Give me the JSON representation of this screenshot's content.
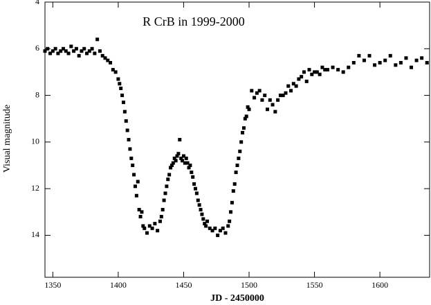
{
  "chart_data": {
    "type": "scatter",
    "title": "R CrB in 1999-2000",
    "x_label": "JD - 2450000",
    "y_label": "Visual   magnitude",
    "color": "#000000",
    "xlim": [
      1344,
      1638
    ],
    "xticks": [
      1350,
      1400,
      1450,
      1500,
      1550,
      1600
    ],
    "ylim": [
      15.8,
      4
    ],
    "yticks": [
      4,
      6,
      8,
      10,
      12,
      14
    ],
    "x": [
      1344,
      1346,
      1348,
      1350,
      1352,
      1354,
      1356,
      1358,
      1360,
      1362,
      1364,
      1366,
      1368,
      1370,
      1372,
      1374,
      1376,
      1378,
      1380,
      1382,
      1384,
      1386,
      1388,
      1390,
      1392,
      1394,
      1396,
      1398,
      1400,
      1401,
      1402,
      1403,
      1404,
      1405,
      1406,
      1407,
      1408,
      1409,
      1410,
      1411,
      1412,
      1413,
      1414,
      1415,
      1416,
      1417,
      1418,
      1419,
      1420,
      1422,
      1424,
      1426,
      1428,
      1430,
      1432,
      1433,
      1434,
      1435,
      1436,
      1437,
      1438,
      1439,
      1440,
      1441,
      1442,
      1443,
      1444,
      1445,
      1446,
      1447,
      1448,
      1449,
      1450,
      1451,
      1452,
      1453,
      1454,
      1455,
      1456,
      1457,
      1458,
      1459,
      1460,
      1461,
      1462,
      1463,
      1464,
      1465,
      1466,
      1467,
      1468,
      1470,
      1472,
      1474,
      1476,
      1478,
      1480,
      1482,
      1484,
      1485,
      1486,
      1487,
      1488,
      1489,
      1490,
      1491,
      1492,
      1493,
      1494,
      1495,
      1496,
      1497,
      1498,
      1499,
      1500,
      1502,
      1504,
      1506,
      1508,
      1510,
      1512,
      1514,
      1516,
      1518,
      1520,
      1522,
      1524,
      1526,
      1528,
      1530,
      1532,
      1534,
      1536,
      1538,
      1540,
      1542,
      1544,
      1546,
      1548,
      1550,
      1552,
      1554,
      1556,
      1558,
      1560,
      1564,
      1568,
      1572,
      1576,
      1580,
      1584,
      1588,
      1592,
      1596,
      1600,
      1604,
      1608,
      1612,
      1616,
      1620,
      1624,
      1628,
      1632,
      1636
    ],
    "values": [
      6.1,
      6.0,
      6.2,
      6.1,
      6.0,
      6.2,
      6.1,
      6.0,
      6.1,
      6.2,
      5.9,
      6.1,
      6.0,
      6.3,
      6.1,
      6.0,
      6.2,
      6.1,
      6.0,
      6.2,
      5.6,
      6.1,
      6.3,
      6.4,
      6.5,
      6.6,
      6.9,
      7.0,
      7.3,
      7.5,
      7.7,
      8.0,
      8.3,
      8.7,
      9.1,
      9.5,
      9.9,
      10.3,
      10.7,
      11.0,
      11.4,
      11.9,
      12.3,
      11.7,
      12.9,
      13.2,
      13.0,
      13.6,
      13.7,
      13.9,
      13.6,
      13.7,
      13.5,
      13.8,
      13.4,
      13.2,
      12.9,
      12.5,
      12.2,
      11.9,
      11.6,
      11.4,
      11.1,
      11.0,
      10.9,
      10.7,
      10.8,
      10.6,
      10.5,
      9.9,
      10.7,
      10.8,
      10.6,
      10.9,
      10.7,
      10.9,
      11.1,
      11.0,
      11.3,
      11.5,
      11.8,
      12.0,
      12.2,
      12.5,
      12.7,
      12.9,
      13.1,
      13.3,
      13.5,
      13.6,
      13.4,
      13.7,
      13.8,
      13.7,
      14.0,
      13.8,
      13.7,
      13.9,
      13.6,
      13.4,
      13.0,
      12.6,
      12.1,
      11.8,
      11.3,
      11.0,
      10.7,
      10.4,
      10.0,
      9.6,
      9.4,
      9.0,
      8.9,
      8.5,
      8.6,
      7.8,
      8.1,
      7.9,
      7.8,
      8.2,
      8.0,
      8.6,
      8.2,
      8.4,
      8.7,
      8.2,
      8.0,
      8.0,
      7.9,
      7.6,
      7.8,
      7.5,
      7.6,
      7.3,
      7.2,
      7.0,
      7.4,
      6.9,
      7.1,
      7.0,
      7.0,
      7.1,
      6.8,
      6.9,
      6.9,
      6.8,
      6.9,
      7.0,
      6.8,
      6.6,
      6.3,
      6.5,
      6.3,
      6.7,
      6.6,
      6.5,
      6.3,
      6.7,
      6.6,
      6.4,
      6.8,
      6.5,
      6.4,
      6.6
    ]
  }
}
